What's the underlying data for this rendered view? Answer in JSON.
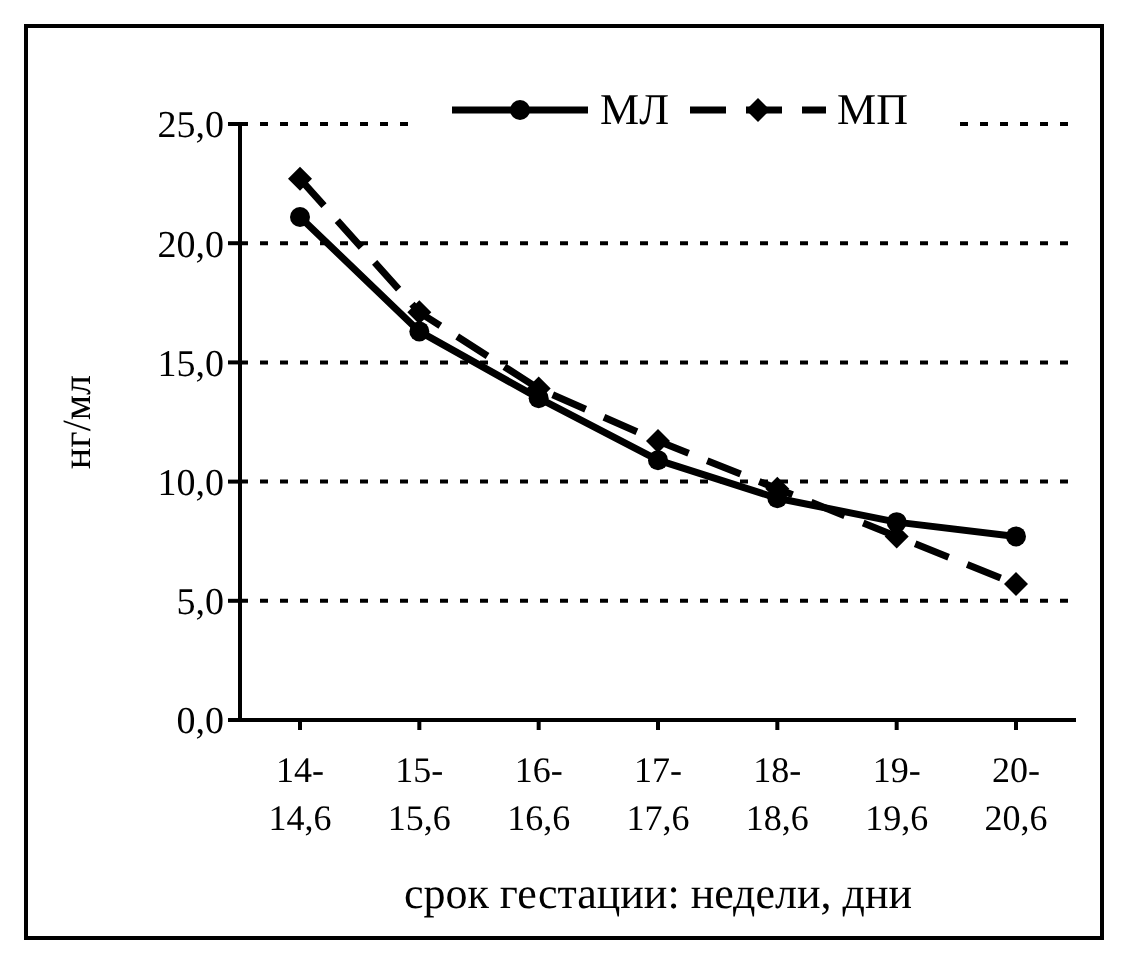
{
  "chart_data": {
    "type": "line",
    "xlabel": "срок гестации: недели, дни",
    "ylabel": "нг/мл",
    "categories": [
      "14-14,6",
      "15-15,6",
      "16-16,6",
      "17-17,6",
      "18-18,6",
      "19-19,6",
      "20-20,6"
    ],
    "series": [
      {
        "name": "МЛ",
        "color": "#000000",
        "marker": "circle",
        "line_style": "solid",
        "values": [
          21.1,
          16.3,
          13.5,
          10.9,
          9.3,
          8.3,
          7.7
        ]
      },
      {
        "name": "МП",
        "color": "#000000",
        "marker": "diamond",
        "line_style": "dashed",
        "values": [
          22.7,
          17.1,
          13.9,
          11.7,
          9.7,
          7.7,
          5.7
        ]
      }
    ],
    "ylim": [
      0,
      25
    ],
    "yticks": [
      {
        "value": 0,
        "label": "0,0"
      },
      {
        "value": 5,
        "label": "5,0"
      },
      {
        "value": 10,
        "label": "10,0"
      },
      {
        "value": 15,
        "label": "15,0"
      },
      {
        "value": 20,
        "label": "20,0"
      },
      {
        "value": 25,
        "label": "25,0"
      }
    ],
    "grid": "y",
    "legend": "top"
  }
}
